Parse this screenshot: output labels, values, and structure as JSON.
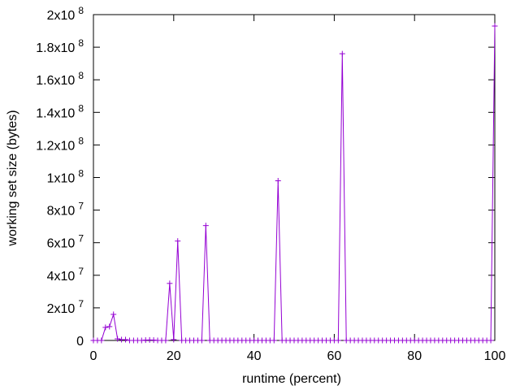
{
  "chart_data": {
    "type": "line",
    "xlabel": "runtime (percent)",
    "ylabel": "working set size (bytes)",
    "xlim": [
      0,
      100
    ],
    "ylim": [
      0,
      200000000
    ],
    "xticks": [
      {
        "value": 0,
        "label": "0"
      },
      {
        "value": 20,
        "label": "20"
      },
      {
        "value": 40,
        "label": "40"
      },
      {
        "value": 60,
        "label": "60"
      },
      {
        "value": 80,
        "label": "80"
      },
      {
        "value": 100,
        "label": "100"
      }
    ],
    "yticks": [
      {
        "value": 0,
        "mant": "0",
        "exp": ""
      },
      {
        "value": 20000000,
        "mant": "2x10",
        "exp": "7"
      },
      {
        "value": 40000000,
        "mant": "4x10",
        "exp": "7"
      },
      {
        "value": 60000000,
        "mant": "6x10",
        "exp": "7"
      },
      {
        "value": 80000000,
        "mant": "8x10",
        "exp": "7"
      },
      {
        "value": 100000000,
        "mant": "1x10",
        "exp": "8"
      },
      {
        "value": 120000000,
        "mant": "1.2x10",
        "exp": "8"
      },
      {
        "value": 140000000,
        "mant": "1.4x10",
        "exp": "8"
      },
      {
        "value": 160000000,
        "mant": "1.6x10",
        "exp": "8"
      },
      {
        "value": 180000000,
        "mant": "1.8x10",
        "exp": "8"
      },
      {
        "value": 200000000,
        "mant": "2x10",
        "exp": "8"
      }
    ],
    "colors": {
      "series": "#9400d3",
      "axis": "#000000"
    },
    "legend": "none",
    "grid": false,
    "series": [
      {
        "points": [
          [
            0,
            0
          ],
          [
            1,
            0
          ],
          [
            2,
            0
          ],
          [
            3,
            8000000
          ],
          [
            4,
            8500000
          ],
          [
            5,
            16000000
          ],
          [
            6,
            1000000
          ],
          [
            7,
            500000
          ],
          [
            8,
            500000
          ],
          [
            9,
            0
          ],
          [
            10,
            0
          ],
          [
            11,
            0
          ],
          [
            12,
            0
          ],
          [
            13,
            200000
          ],
          [
            14,
            300000
          ],
          [
            15,
            200000
          ],
          [
            16,
            0
          ],
          [
            17,
            0
          ],
          [
            18,
            0
          ],
          [
            19,
            35000000
          ],
          [
            20,
            500000
          ],
          [
            21,
            61000000
          ],
          [
            22,
            0
          ],
          [
            23,
            0
          ],
          [
            24,
            0
          ],
          [
            25,
            0
          ],
          [
            26,
            0
          ],
          [
            27,
            0
          ],
          [
            28,
            70500000
          ],
          [
            29,
            0
          ],
          [
            30,
            0
          ],
          [
            31,
            0
          ],
          [
            32,
            0
          ],
          [
            33,
            0
          ],
          [
            34,
            0
          ],
          [
            35,
            0
          ],
          [
            36,
            0
          ],
          [
            37,
            0
          ],
          [
            38,
            0
          ],
          [
            39,
            0
          ],
          [
            40,
            0
          ],
          [
            41,
            0
          ],
          [
            42,
            0
          ],
          [
            43,
            0
          ],
          [
            44,
            0
          ],
          [
            45,
            0
          ],
          [
            46,
            98000000
          ],
          [
            47,
            0
          ],
          [
            48,
            0
          ],
          [
            49,
            0
          ],
          [
            50,
            0
          ],
          [
            51,
            0
          ],
          [
            52,
            0
          ],
          [
            53,
            0
          ],
          [
            54,
            0
          ],
          [
            55,
            0
          ],
          [
            56,
            0
          ],
          [
            57,
            0
          ],
          [
            58,
            0
          ],
          [
            59,
            0
          ],
          [
            60,
            0
          ],
          [
            61,
            0
          ],
          [
            62,
            176000000
          ],
          [
            63,
            0
          ],
          [
            64,
            0
          ],
          [
            65,
            0
          ],
          [
            66,
            0
          ],
          [
            67,
            0
          ],
          [
            68,
            0
          ],
          [
            69,
            0
          ],
          [
            70,
            0
          ],
          [
            71,
            0
          ],
          [
            72,
            0
          ],
          [
            73,
            0
          ],
          [
            74,
            0
          ],
          [
            75,
            0
          ],
          [
            76,
            0
          ],
          [
            77,
            0
          ],
          [
            78,
            0
          ],
          [
            79,
            0
          ],
          [
            80,
            0
          ],
          [
            81,
            0
          ],
          [
            82,
            0
          ],
          [
            83,
            0
          ],
          [
            84,
            0
          ],
          [
            85,
            0
          ],
          [
            86,
            0
          ],
          [
            87,
            0
          ],
          [
            88,
            0
          ],
          [
            89,
            0
          ],
          [
            90,
            0
          ],
          [
            91,
            0
          ],
          [
            92,
            0
          ],
          [
            93,
            0
          ],
          [
            94,
            0
          ],
          [
            95,
            0
          ],
          [
            96,
            0
          ],
          [
            97,
            0
          ],
          [
            98,
            0
          ],
          [
            99,
            0
          ],
          [
            100,
            193000000
          ]
        ]
      }
    ]
  }
}
